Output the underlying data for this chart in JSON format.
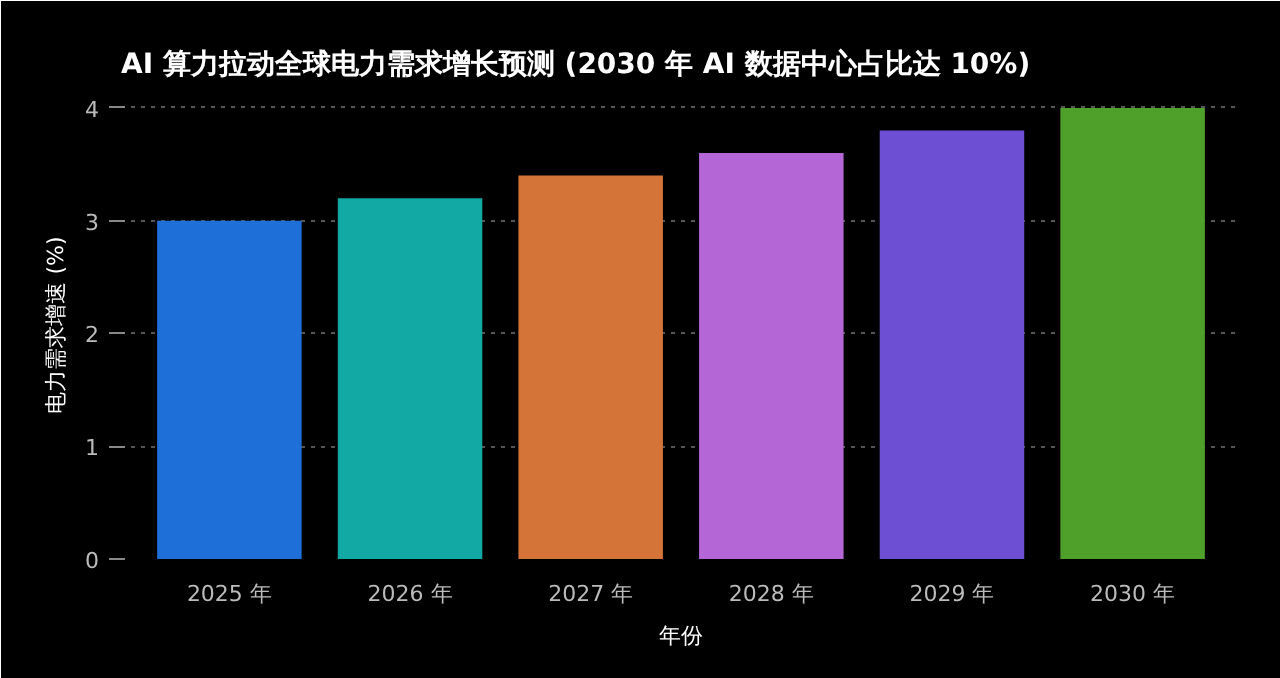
{
  "chart_data": {
    "type": "bar",
    "title": "AI 算力拉动全球电力需求增长预测 (2030 年 AI 数据中心占比达 10%)",
    "xlabel": "年份",
    "ylabel": "电力需求增速 (%)",
    "categories": [
      "2025 年",
      "2026 年",
      "2027 年",
      "2028 年",
      "2029 年",
      "2030 年"
    ],
    "values": [
      3.0,
      3.2,
      3.4,
      3.6,
      3.8,
      4.0
    ],
    "colors": [
      "#1f6fd8",
      "#12a8a4",
      "#d47438",
      "#b466d6",
      "#6d4fd4",
      "#4fa02a"
    ],
    "ylim": [
      0,
      4.15
    ],
    "yticks": [
      0,
      1,
      2,
      3,
      4
    ],
    "grid": "y"
  }
}
